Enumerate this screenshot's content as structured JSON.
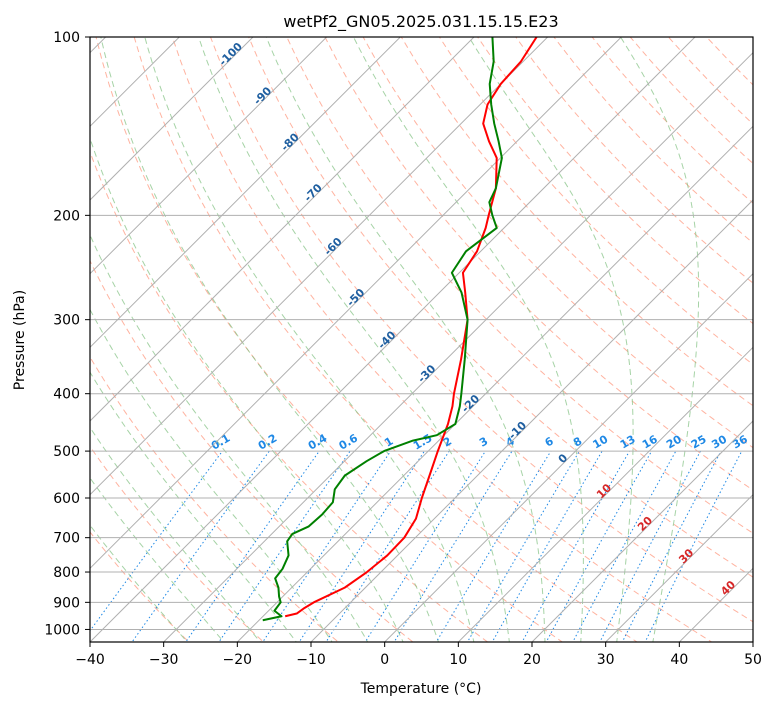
{
  "chart_data": {
    "type": "line",
    "subtype": "skew-t log-p diagram",
    "title": "wetPf2_GN05.2025.031.15.15.E23",
    "xlabel": "Temperature (°C)",
    "ylabel": "Pressure (hPa)",
    "xlim": [
      -40,
      50
    ],
    "ylim": [
      1050,
      100
    ],
    "y_scale": "log",
    "grid": true,
    "x_ticks": [
      -40,
      -30,
      -20,
      -10,
      0,
      10,
      20,
      30,
      40,
      50
    ],
    "y_ticks": [
      100,
      200,
      300,
      400,
      500,
      600,
      700,
      800,
      900,
      1000
    ],
    "colors": {
      "temperature": "#ff0000",
      "dewpoint": "#008000",
      "dry_adiabats": "#ff9a80",
      "moist_adiabats": "#80c080",
      "mixing_ratio": "#1e88e5",
      "isotherms": "#b0b0b0",
      "moist_labels": "#1f5fa0",
      "dry_labels": "#d62728",
      "zero_label": "#666666"
    },
    "series": [
      {
        "name": "Temperature",
        "points": [
          {
            "p": 950,
            "t": -17.0
          },
          {
            "p": 940,
            "t": -15.8
          },
          {
            "p": 920,
            "t": -15.5
          },
          {
            "p": 900,
            "t": -15.0
          },
          {
            "p": 850,
            "t": -12.8
          },
          {
            "p": 800,
            "t": -11.9
          },
          {
            "p": 750,
            "t": -11.4
          },
          {
            "p": 700,
            "t": -11.5
          },
          {
            "p": 650,
            "t": -12.5
          },
          {
            "p": 600,
            "t": -14.5
          },
          {
            "p": 550,
            "t": -16.5
          },
          {
            "p": 500,
            "t": -18.7
          },
          {
            "p": 450,
            "t": -21.0
          },
          {
            "p": 420,
            "t": -22.8
          },
          {
            "p": 400,
            "t": -24.3
          },
          {
            "p": 350,
            "t": -28.0
          },
          {
            "p": 300,
            "t": -32.5
          },
          {
            "p": 270,
            "t": -36.5
          },
          {
            "p": 250,
            "t": -39.5
          },
          {
            "p": 230,
            "t": -40.5
          },
          {
            "p": 210,
            "t": -42.5
          },
          {
            "p": 200,
            "t": -43.8
          },
          {
            "p": 180,
            "t": -46.5
          },
          {
            "p": 160,
            "t": -50.5
          },
          {
            "p": 150,
            "t": -53.8
          },
          {
            "p": 140,
            "t": -57.0
          },
          {
            "p": 130,
            "t": -59.0
          },
          {
            "p": 120,
            "t": -60.0
          },
          {
            "p": 110,
            "t": -60.3
          },
          {
            "p": 100,
            "t": -61.5
          }
        ]
      },
      {
        "name": "Dewpoint",
        "points": [
          {
            "p": 965,
            "t": -19.5
          },
          {
            "p": 950,
            "t": -17.5
          },
          {
            "p": 930,
            "t": -19.2
          },
          {
            "p": 900,
            "t": -19.5
          },
          {
            "p": 880,
            "t": -20.5
          },
          {
            "p": 850,
            "t": -21.8
          },
          {
            "p": 820,
            "t": -23.5
          },
          {
            "p": 790,
            "t": -23.8
          },
          {
            "p": 750,
            "t": -24.8
          },
          {
            "p": 710,
            "t": -26.9
          },
          {
            "p": 690,
            "t": -27.2
          },
          {
            "p": 670,
            "t": -26.0
          },
          {
            "p": 640,
            "t": -25.8
          },
          {
            "p": 610,
            "t": -26.0
          },
          {
            "p": 580,
            "t": -27.5
          },
          {
            "p": 550,
            "t": -28.0
          },
          {
            "p": 520,
            "t": -27.0
          },
          {
            "p": 500,
            "t": -26.0
          },
          {
            "p": 480,
            "t": -23.5
          },
          {
            "p": 470,
            "t": -21.0
          },
          {
            "p": 450,
            "t": -20.0
          },
          {
            "p": 420,
            "t": -21.8
          },
          {
            "p": 400,
            "t": -23.3
          },
          {
            "p": 350,
            "t": -27.5
          },
          {
            "p": 300,
            "t": -32.5
          },
          {
            "p": 270,
            "t": -37.0
          },
          {
            "p": 250,
            "t": -41.0
          },
          {
            "p": 230,
            "t": -42.0
          },
          {
            "p": 210,
            "t": -41.0
          },
          {
            "p": 200,
            "t": -43.3
          },
          {
            "p": 190,
            "t": -45.5
          },
          {
            "p": 180,
            "t": -46.5
          },
          {
            "p": 160,
            "t": -49.8
          },
          {
            "p": 150,
            "t": -52.5
          },
          {
            "p": 140,
            "t": -55.5
          },
          {
            "p": 130,
            "t": -58.5
          },
          {
            "p": 120,
            "t": -61.5
          },
          {
            "p": 110,
            "t": -64.0
          },
          {
            "p": 100,
            "t": -67.5
          }
        ]
      }
    ],
    "isotherm_range": [
      -160,
      50
    ],
    "dry_adiabat_thetas": [
      -30,
      -20,
      -10,
      0,
      10,
      20,
      30,
      40,
      50,
      60,
      70,
      80,
      90,
      100,
      110,
      120,
      130,
      140,
      150,
      160,
      170,
      180
    ],
    "moist_adiabat_start_temps": [
      -30,
      -25,
      -20,
      -15,
      -10,
      -5,
      0,
      5,
      10,
      15,
      20,
      25,
      30,
      35
    ],
    "mixing_ratios": [
      {
        "label": "0.1",
        "w": 0.1
      },
      {
        "label": "0.2",
        "w": 0.2
      },
      {
        "label": "0.4",
        "w": 0.4
      },
      {
        "label": "0.6",
        "w": 0.6
      },
      {
        "label": "1",
        "w": 1
      },
      {
        "label": "1.5",
        "w": 1.5
      },
      {
        "label": "2",
        "w": 2
      },
      {
        "label": "3",
        "w": 3
      },
      {
        "label": "4",
        "w": 4
      },
      {
        "label": "6",
        "w": 6
      },
      {
        "label": "8",
        "w": 8
      },
      {
        "label": "10",
        "w": 10
      },
      {
        "label": "13",
        "w": 13
      },
      {
        "label": "16",
        "w": 16
      },
      {
        "label": "20",
        "w": 20
      },
      {
        "label": "25",
        "w": 25
      },
      {
        "label": "30",
        "w": 30
      },
      {
        "label": "36",
        "w": 36
      }
    ],
    "moist_adiabat_labels": [
      {
        "text": "-100",
        "t": -100,
        "p": 108
      },
      {
        "text": "-90",
        "t": -90,
        "p": 127
      },
      {
        "text": "-80",
        "t": -80,
        "p": 152
      },
      {
        "text": "-70",
        "t": -70,
        "p": 185
      },
      {
        "text": "-60",
        "t": -60,
        "p": 228
      },
      {
        "text": "-50",
        "t": -50,
        "p": 278
      },
      {
        "text": "-40",
        "t": -40,
        "p": 328
      },
      {
        "text": "-30",
        "t": -30,
        "p": 374
      },
      {
        "text": "-20",
        "t": -20,
        "p": 420
      },
      {
        "text": "-10",
        "t": -10,
        "p": 466
      },
      {
        "text": "0",
        "t": 0,
        "p": 520
      }
    ],
    "dry_adiabat_labels": [
      {
        "text": "10",
        "t": 10,
        "p": 590
      },
      {
        "text": "20",
        "t": 20,
        "p": 670
      },
      {
        "text": "30",
        "t": 30,
        "p": 760
      },
      {
        "text": "40",
        "t": 40,
        "p": 860
      }
    ]
  }
}
